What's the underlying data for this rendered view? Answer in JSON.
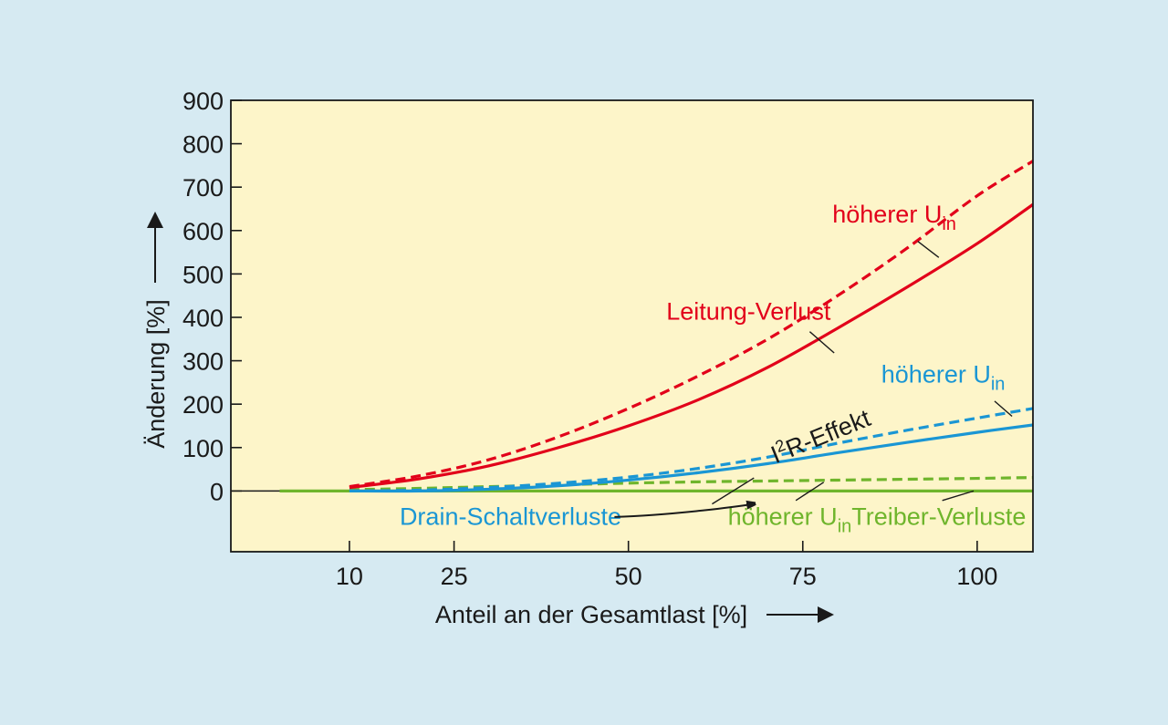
{
  "chart_data": {
    "type": "line",
    "title": "",
    "xlabel": "Anteil an der Gesamtlast [%]",
    "ylabel": "Änderung [%]",
    "xlim": [
      -7,
      108
    ],
    "ylim": [
      -140,
      900
    ],
    "x_ticks": [
      10,
      25,
      50,
      75,
      100
    ],
    "y_ticks": [
      0,
      100,
      200,
      300,
      400,
      500,
      600,
      700,
      800,
      900
    ],
    "grid": false,
    "legend": "none",
    "colors": {
      "plot_bg": "#fdf5c9",
      "page_bg": "#d6eaf2",
      "red": "#e2001a",
      "blue": "#1a96d4",
      "green": "#6fb52c",
      "axis": "#1a1a1a"
    },
    "series": [
      {
        "key": "leitung_hoeher",
        "color": "#e2001a",
        "style": "dashed",
        "points": [
          [
            0,
            0
          ],
          [
            10,
            10
          ],
          [
            20,
            35
          ],
          [
            30,
            72
          ],
          [
            40,
            125
          ],
          [
            50,
            190
          ],
          [
            60,
            265
          ],
          [
            70,
            350
          ],
          [
            80,
            450
          ],
          [
            90,
            560
          ],
          [
            100,
            680
          ],
          [
            108,
            760
          ]
        ]
      },
      {
        "key": "leitung",
        "color": "#e2001a",
        "style": "solid",
        "points": [
          [
            0,
            0
          ],
          [
            10,
            8
          ],
          [
            20,
            28
          ],
          [
            30,
            58
          ],
          [
            40,
            100
          ],
          [
            50,
            150
          ],
          [
            60,
            210
          ],
          [
            70,
            285
          ],
          [
            80,
            375
          ],
          [
            90,
            470
          ],
          [
            100,
            570
          ],
          [
            108,
            660
          ]
        ]
      },
      {
        "key": "drain_hoeher",
        "color": "#1a96d4",
        "style": "dashed",
        "points": [
          [
            0,
            0
          ],
          [
            10,
            0
          ],
          [
            20,
            2
          ],
          [
            30,
            8
          ],
          [
            40,
            18
          ],
          [
            50,
            32
          ],
          [
            60,
            52
          ],
          [
            70,
            78
          ],
          [
            80,
            110
          ],
          [
            90,
            140
          ],
          [
            100,
            168
          ],
          [
            108,
            190
          ]
        ]
      },
      {
        "key": "drain",
        "color": "#1a96d4",
        "style": "solid",
        "points": [
          [
            0,
            0
          ],
          [
            10,
            0
          ],
          [
            20,
            0
          ],
          [
            30,
            4
          ],
          [
            40,
            12
          ],
          [
            50,
            25
          ],
          [
            60,
            42
          ],
          [
            70,
            63
          ],
          [
            80,
            88
          ],
          [
            90,
            112
          ],
          [
            100,
            135
          ],
          [
            108,
            152
          ]
        ]
      },
      {
        "key": "treiber_hoeher",
        "color": "#6fb52c",
        "style": "dashed",
        "points": [
          [
            0,
            0
          ],
          [
            10,
            3
          ],
          [
            20,
            6
          ],
          [
            30,
            10
          ],
          [
            40,
            14
          ],
          [
            50,
            18
          ],
          [
            60,
            21
          ],
          [
            70,
            23
          ],
          [
            80,
            25
          ],
          [
            90,
            27
          ],
          [
            100,
            29
          ],
          [
            108,
            31
          ]
        ]
      },
      {
        "key": "treiber",
        "color": "#6fb52c",
        "style": "solid",
        "points": [
          [
            0,
            0
          ],
          [
            10,
            0
          ],
          [
            20,
            0
          ],
          [
            30,
            0
          ],
          [
            40,
            0
          ],
          [
            50,
            0
          ],
          [
            60,
            0
          ],
          [
            70,
            0
          ],
          [
            80,
            0
          ],
          [
            90,
            0
          ],
          [
            100,
            0
          ],
          [
            108,
            0
          ]
        ]
      }
    ],
    "annotations": [
      {
        "key": "a_red_uin",
        "text": "höherer U",
        "sub": "in",
        "color": "#e2001a",
        "x": 97,
        "y": 618,
        "anchor": "end",
        "leader": [
          [
            91.5,
            575
          ],
          [
            94.5,
            538
          ]
        ]
      },
      {
        "key": "a_leitung",
        "text": "Leitung-Verlust",
        "color": "#e2001a",
        "x": 79,
        "y": 395,
        "anchor": "end",
        "leader": [
          [
            76,
            367
          ],
          [
            79.5,
            318
          ]
        ]
      },
      {
        "key": "a_blue_uin",
        "text": "höherer U",
        "sub": "in",
        "color": "#1a96d4",
        "x": 104,
        "y": 250,
        "anchor": "end",
        "leader": [
          [
            102.5,
            207
          ],
          [
            105,
            172
          ]
        ]
      },
      {
        "key": "a_i2r",
        "text": "I",
        "sup": "2",
        "tail": "R-Effekt",
        "color": "#1a1a1a",
        "x": 78,
        "y": 108,
        "anchor": "middle",
        "rotate": -22
      },
      {
        "key": "a_drain",
        "text": "Drain-Schaltverluste",
        "color": "#1a96d4",
        "x": 49,
        "y": -78,
        "anchor": "end",
        "leader": [
          [
            62,
            -30
          ],
          [
            68,
            30
          ]
        ]
      },
      {
        "key": "a_green_uin",
        "text": "höherer U",
        "sub": "in",
        "color": "#6fb52c",
        "x": 82,
        "y": -78,
        "anchor": "end",
        "leader": [
          [
            74,
            -22
          ],
          [
            78,
            20
          ]
        ]
      },
      {
        "key": "a_treiber",
        "text": "Treiber-Verluste",
        "color": "#6fb52c",
        "x": 107,
        "y": -78,
        "anchor": "end",
        "leader": [
          [
            95,
            -22
          ],
          [
            99.5,
            0
          ]
        ]
      }
    ],
    "arrow_path": [
      [
        48,
        -60
      ],
      [
        57,
        -55
      ],
      [
        66,
        -35
      ],
      [
        68,
        -30
      ]
    ]
  }
}
